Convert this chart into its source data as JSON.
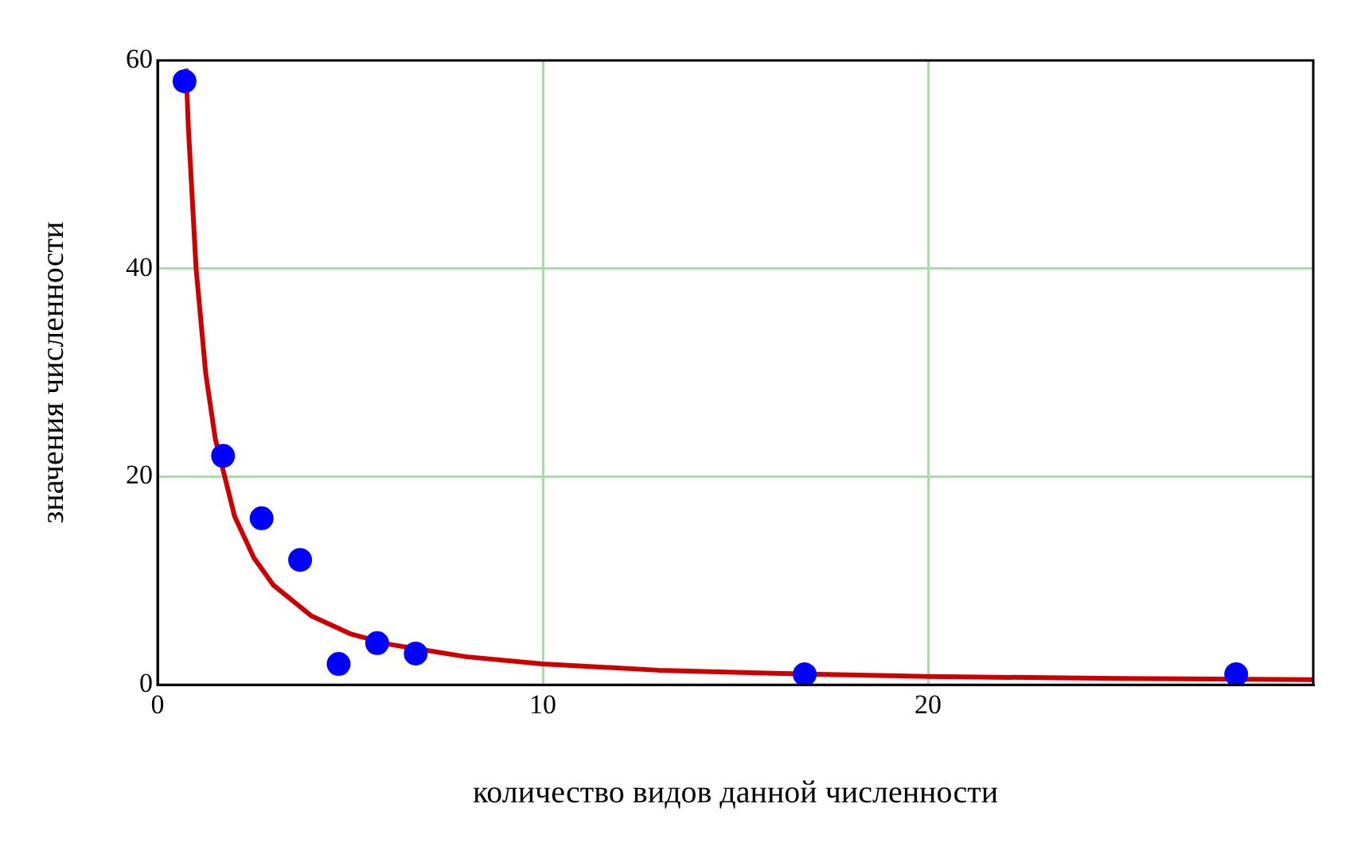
{
  "chart_data": {
    "type": "scatter",
    "xlabel": "количество видов данной численности",
    "ylabel": "значения численности",
    "xlim": [
      0,
      30
    ],
    "ylim": [
      0,
      60
    ],
    "xticks": [
      0,
      10,
      20
    ],
    "yticks": [
      0,
      20,
      40,
      60
    ],
    "grid": true,
    "marker": "circle",
    "series": [
      {
        "type": "scatter",
        "color": "#0000ff",
        "x": [
          0.7,
          1.7,
          2.7,
          3.7,
          4.7,
          5.7,
          6.7,
          16.8,
          28
        ],
        "values": [
          58,
          22,
          16,
          12,
          2,
          4,
          3,
          1,
          1
        ]
      },
      {
        "type": "line",
        "color": "#cc0000",
        "marker": "none",
        "x": [
          0.74,
          0.8,
          1,
          1.25,
          1.5,
          2,
          2.5,
          3,
          4,
          5,
          6,
          8,
          10,
          13,
          16,
          20,
          25,
          30
        ],
        "values": [
          59.2,
          53.5,
          40,
          29.9,
          23.6,
          16.2,
          12.2,
          9.6,
          6.6,
          4.9,
          3.9,
          2.7,
          2,
          1.4,
          1.1,
          0.8,
          0.6,
          0.5
        ]
      }
    ]
  }
}
